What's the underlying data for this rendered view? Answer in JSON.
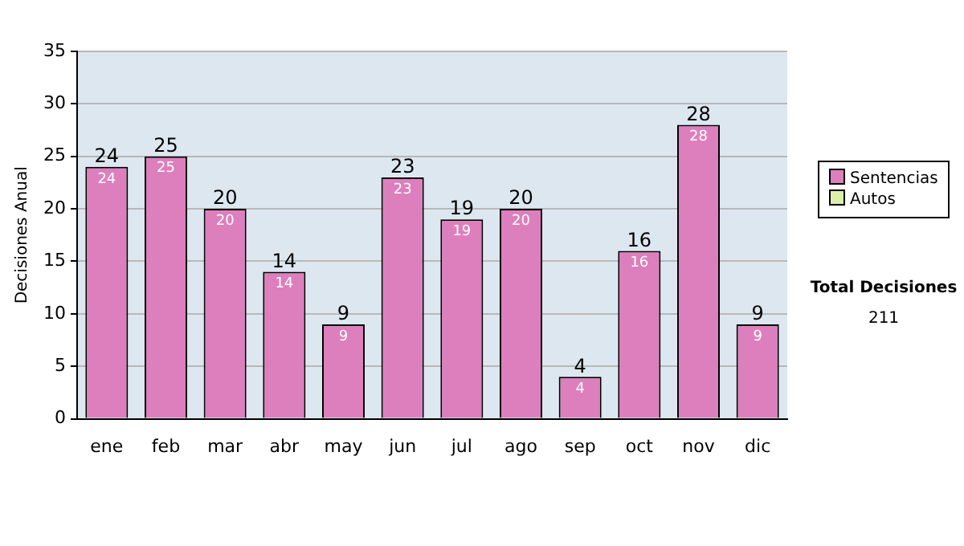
{
  "chart_data": {
    "type": "bar",
    "stacked": true,
    "ylabel": "Decisiones Anual",
    "categories": [
      "ene",
      "feb",
      "mar",
      "abr",
      "may",
      "jun",
      "jul",
      "ago",
      "sep",
      "oct",
      "nov",
      "dic"
    ],
    "series": [
      {
        "name": "Sentencias",
        "color": "#dd7fbd",
        "values": [
          24,
          25,
          20,
          14,
          9,
          23,
          19,
          20,
          4,
          16,
          28,
          9
        ],
        "value_labels": [
          "24",
          "25",
          "20",
          "14",
          "9",
          "23",
          "19",
          "20",
          "4",
          "16",
          "28",
          "9"
        ]
      },
      {
        "name": "Autos",
        "color": "#ddeeaa",
        "values": [
          0,
          0,
          0,
          0,
          0,
          0,
          0,
          0,
          0,
          0,
          0,
          0
        ],
        "value_labels": [
          null,
          null,
          null,
          null,
          null,
          null,
          null,
          null,
          null,
          null,
          null,
          null
        ]
      }
    ],
    "totals": [
      "24",
      "25",
      "20",
      "14",
      "9",
      "23",
      "19",
      "20",
      "4",
      "16",
      "28",
      "9"
    ],
    "ylim": [
      0,
      35
    ],
    "yticks": [
      0,
      5,
      10,
      15,
      20,
      25,
      30,
      35
    ],
    "grid": "y",
    "legend": "right",
    "annotations": [
      "Total Decisiones",
      "211"
    ]
  }
}
